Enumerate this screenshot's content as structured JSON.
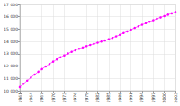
{
  "chart_data": {
    "type": "line",
    "color": "#ff00ff",
    "marker": "circle",
    "grid": true,
    "x": [
      1961,
      1962,
      1963,
      1964,
      1965,
      1966,
      1967,
      1968,
      1969,
      1970,
      1971,
      1972,
      1973,
      1974,
      1975,
      1976,
      1977,
      1978,
      1979,
      1980,
      1981,
      1982,
      1983,
      1984,
      1985,
      1986,
      1987,
      1988,
      1989,
      1990,
      1991,
      1992,
      1993,
      1994,
      1995,
      1996,
      1997,
      1998,
      1999,
      2000,
      2001,
      2002,
      2003
    ],
    "values": [
      10300,
      10560,
      10820,
      11070,
      11310,
      11540,
      11760,
      11970,
      12170,
      12360,
      12540,
      12710,
      12870,
      13020,
      13160,
      13290,
      13410,
      13520,
      13620,
      13720,
      13810,
      13900,
      13990,
      14080,
      14180,
      14290,
      14410,
      14540,
      14680,
      14820,
      14960,
      15100,
      15230,
      15360,
      15480,
      15600,
      15720,
      15840,
      15950,
      16060,
      16170,
      16280,
      16390
    ],
    "xlim": [
      1961,
      2003
    ],
    "xticks": [
      1961,
      1964,
      1967,
      1970,
      1973,
      1976,
      1979,
      1982,
      1985,
      1988,
      1991,
      1994,
      1997,
      2000,
      2003
    ],
    "ylim": [
      10000,
      17000
    ],
    "yticks": [
      {
        "value": 10000,
        "label": "10 000"
      },
      {
        "value": 11000,
        "label": "11 000"
      },
      {
        "value": 12000,
        "label": "12 000"
      },
      {
        "value": 13000,
        "label": "13 000"
      },
      {
        "value": 14000,
        "label": "14 000"
      },
      {
        "value": 15000,
        "label": "15 000"
      },
      {
        "value": 16000,
        "label": "16 000"
      },
      {
        "value": 17000,
        "label": "17 000"
      }
    ]
  }
}
